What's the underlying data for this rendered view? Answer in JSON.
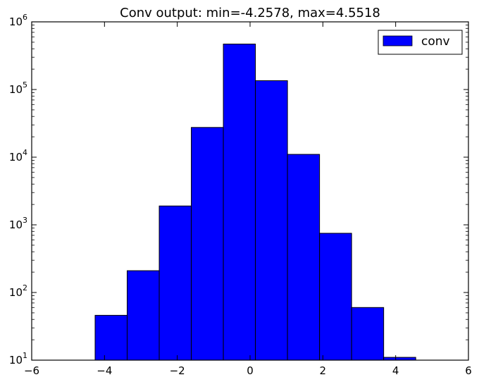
{
  "chart_data": {
    "type": "bar",
    "subtype": "histogram",
    "title": "Conv output: min=-4.2578, max=4.5518",
    "xlabel": "",
    "ylabel": "",
    "xlim": [
      -6,
      6
    ],
    "ylim": [
      10,
      1000000
    ],
    "yscale": "log",
    "grid": false,
    "legend_position": "top-right",
    "xticks": [
      "−6",
      "−4",
      "−2",
      "0",
      "2",
      "4",
      "6"
    ],
    "yticks": [
      {
        "base": "10",
        "exp": "1"
      },
      {
        "base": "10",
        "exp": "2"
      },
      {
        "base": "10",
        "exp": "3"
      },
      {
        "base": "10",
        "exp": "4"
      },
      {
        "base": "10",
        "exp": "5"
      },
      {
        "base": "10",
        "exp": "6"
      }
    ],
    "bin_edges": [
      -4.2578,
      -3.3768,
      -2.4958,
      -1.6149,
      -0.7339,
      0.147,
      1.028,
      1.909,
      2.7899,
      3.6709,
      4.5518
    ],
    "series": [
      {
        "name": "conv",
        "color": "#0000ff",
        "values": [
          46,
          210,
          1900,
          27500,
          470000,
          135000,
          11000,
          750,
          60,
          11
        ]
      }
    ]
  }
}
